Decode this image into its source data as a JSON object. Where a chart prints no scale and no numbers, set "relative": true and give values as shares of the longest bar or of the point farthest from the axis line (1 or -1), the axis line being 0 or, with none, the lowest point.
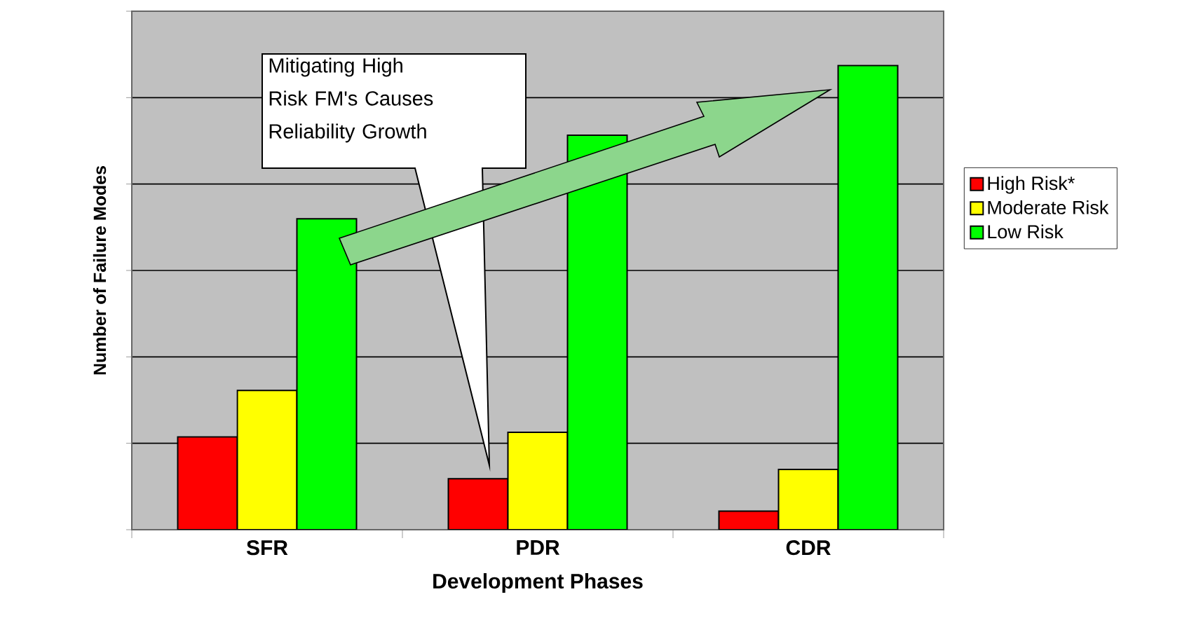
{
  "chart_data": {
    "type": "bar",
    "xlabel": "Development Phases",
    "ylabel": "Number of Failure Modes",
    "categories": [
      "SFR",
      "PDR",
      "CDR"
    ],
    "series": [
      {
        "name": "High Risk*",
        "color": "#ff0000",
        "values": [
          0.2,
          0.11,
          0.04
        ]
      },
      {
        "name": "Moderate Risk",
        "color": "#ffff00",
        "values": [
          0.3,
          0.21,
          0.13
        ]
      },
      {
        "name": "Low Risk",
        "color": "#00ff00",
        "values": [
          0.67,
          0.85,
          1.0
        ]
      }
    ],
    "relative": true,
    "grid": "y",
    "legend": "right",
    "annotations": [
      "Mitigating High Risk FM's Causes Reliability Growth"
    ]
  }
}
